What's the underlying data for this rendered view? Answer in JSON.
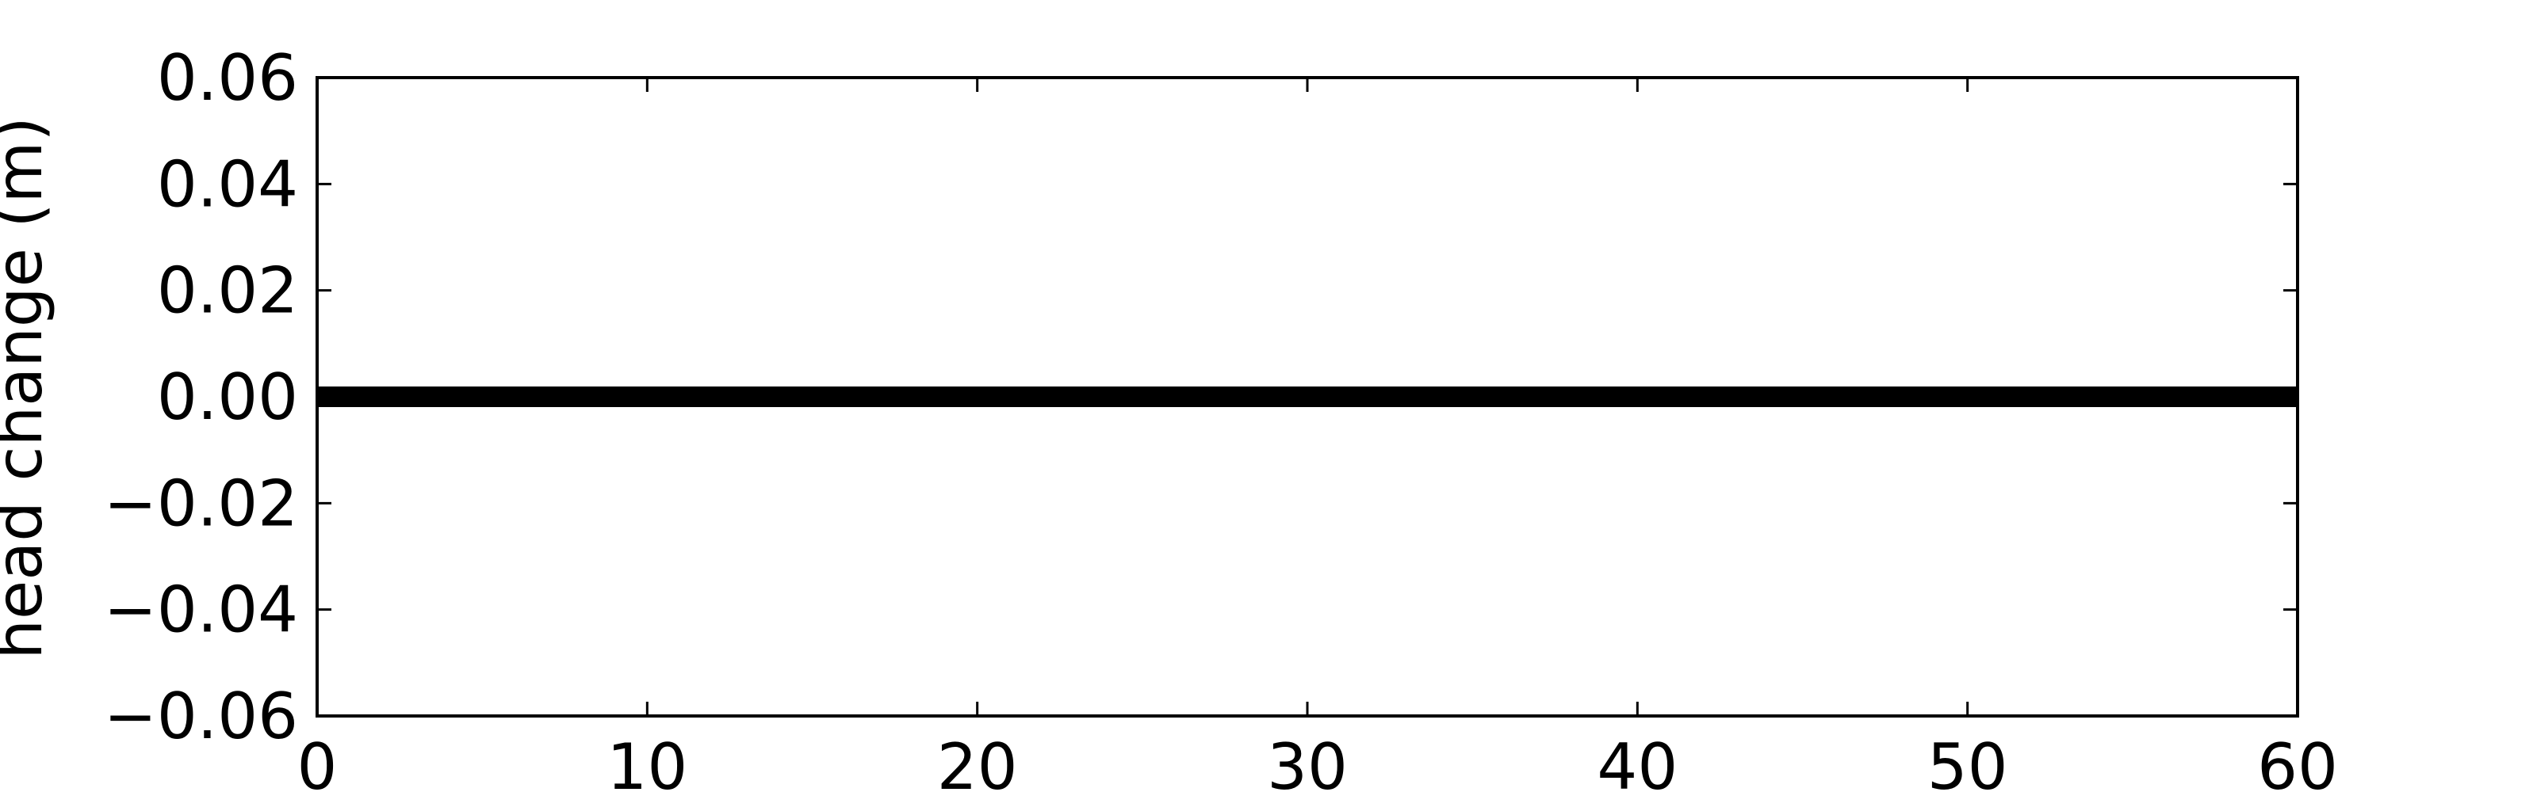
{
  "chart_data": {
    "type": "line",
    "title": "",
    "xlabel": "",
    "ylabel": "head change (m)",
    "xlim": [
      0,
      60
    ],
    "ylim": [
      -0.06,
      0.06
    ],
    "x_ticks": [
      0,
      10,
      20,
      30,
      40,
      50,
      60
    ],
    "x_tick_labels": [
      "0",
      "10",
      "20",
      "30",
      "40",
      "50",
      "60"
    ],
    "y_ticks": [
      -0.06,
      -0.04,
      -0.02,
      0.0,
      0.02,
      0.04,
      0.06
    ],
    "y_tick_labels": [
      "−0.06",
      "−0.04",
      "−0.02",
      "0.00",
      "0.02",
      "0.04",
      "0.06"
    ],
    "grid": false,
    "legend": false,
    "series": [
      {
        "color": "#000000",
        "x": [
          0,
          60
        ],
        "y": [
          0.0,
          0.0
        ]
      }
    ]
  }
}
